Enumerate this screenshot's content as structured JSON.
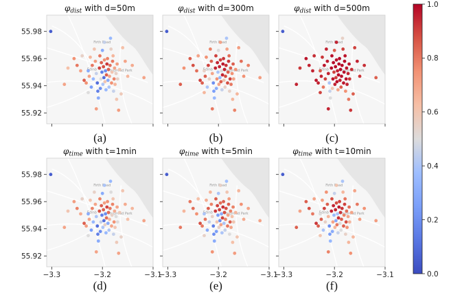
{
  "chart_data": {
    "type": "scatter",
    "layout": "2x3 grid of map scatter panels sharing a colorbar",
    "x_ticks": [
      "−3.3",
      "−3.2",
      "−3.1"
    ],
    "y_ticks": [
      "55.92",
      "55.94",
      "55.96",
      "55.98"
    ],
    "xlim": [
      -3.31,
      -3.1
    ],
    "ylim": [
      55.912,
      55.992
    ],
    "colorbar": {
      "colormap": "coolwarm",
      "range": [
        0.0,
        1.0
      ],
      "ticks": [
        "0.0",
        "0.2",
        "0.4",
        "0.6",
        "0.8",
        "1.0"
      ]
    },
    "map_labels": [
      "Edinb",
      "Firth Road",
      "Holyrood Park"
    ],
    "panels": [
      {
        "symbol": "φ",
        "subscript": "dist",
        "suffix": " with d=50m",
        "caption": "(a)"
      },
      {
        "symbol": "φ",
        "subscript": "dist",
        "suffix": " with d=300m",
        "caption": "(b)"
      },
      {
        "symbol": "φ",
        "subscript": "dist",
        "suffix": " with d=500m",
        "caption": "(c)"
      },
      {
        "symbol": "φ",
        "subscript": "time",
        "suffix": " with t=1min",
        "caption": "(d)"
      },
      {
        "symbol": "φ",
        "subscript": "time",
        "suffix": " with t=5min",
        "caption": "(e)"
      },
      {
        "symbol": "φ",
        "subscript": "time",
        "suffix": " with t=10min",
        "caption": "(f)"
      }
    ],
    "points": [
      [
        -3.302,
        55.98
      ],
      [
        -3.275,
        55.941
      ],
      [
        -3.268,
        55.953
      ],
      [
        -3.256,
        55.96
      ],
      [
        -3.25,
        55.955
      ],
      [
        -3.243,
        55.951
      ],
      [
        -3.24,
        55.962
      ],
      [
        -3.236,
        55.944
      ],
      [
        -3.232,
        55.942
      ],
      [
        -3.228,
        55.951
      ],
      [
        -3.226,
        55.947
      ],
      [
        -3.224,
        55.961
      ],
      [
        -3.222,
        55.939
      ],
      [
        -3.22,
        55.955
      ],
      [
        -3.218,
        55.945
      ],
      [
        -3.216,
        55.967
      ],
      [
        -3.214,
        55.958
      ],
      [
        -3.212,
        55.949
      ],
      [
        -3.21,
        55.942
      ],
      [
        -3.209,
        55.936
      ],
      [
        -3.208,
        55.931
      ],
      [
        -3.206,
        55.953
      ],
      [
        -3.205,
        55.962
      ],
      [
        -3.204,
        55.938
      ],
      [
        -3.203,
        55.945
      ],
      [
        -3.202,
        55.957
      ],
      [
        -3.201,
        55.95
      ],
      [
        -3.2,
        55.966
      ],
      [
        -3.199,
        55.941
      ],
      [
        -3.198,
        55.954
      ],
      [
        -3.197,
        55.946
      ],
      [
        -3.196,
        55.959
      ],
      [
        -3.195,
        55.943
      ],
      [
        -3.194,
        55.951
      ],
      [
        -3.193,
        55.937
      ],
      [
        -3.192,
        55.948
      ],
      [
        -3.191,
        55.956
      ],
      [
        -3.19,
        55.96
      ],
      [
        -3.189,
        55.944
      ],
      [
        -3.188,
        55.952
      ],
      [
        -3.187,
        55.939
      ],
      [
        -3.186,
        55.947
      ],
      [
        -3.185,
        55.955
      ],
      [
        -3.184,
        55.975
      ],
      [
        -3.183,
        55.967
      ],
      [
        -3.182,
        55.942
      ],
      [
        -3.181,
        55.95
      ],
      [
        -3.18,
        55.958
      ],
      [
        -3.179,
        55.962
      ],
      [
        -3.178,
        55.936
      ],
      [
        -3.177,
        55.945
      ],
      [
        -3.176,
        55.953
      ],
      [
        -3.175,
        55.941
      ],
      [
        -3.173,
        55.949
      ],
      [
        -3.172,
        55.93
      ],
      [
        -3.171,
        55.956
      ],
      [
        -3.17,
        55.945
      ],
      [
        -3.168,
        55.922
      ],
      [
        -3.166,
        55.952
      ],
      [
        -3.163,
        55.934
      ],
      [
        -3.16,
        55.968
      ],
      [
        -3.155,
        55.958
      ],
      [
        -3.15,
        55.947
      ],
      [
        -3.141,
        55.955
      ],
      [
        -3.118,
        55.946
      ],
      [
        -3.212,
        55.923
      ],
      [
        -3.228,
        55.935
      ],
      [
        -3.196,
        55.972
      ]
    ],
    "values": [
      [
        0.05,
        0.05,
        0.05,
        0.05,
        0.05,
        0.05
      ],
      [
        0.7,
        0.85,
        0.95,
        0.7,
        0.8,
        0.85
      ],
      [
        0.62,
        0.75,
        0.92,
        0.6,
        0.65,
        0.7
      ],
      [
        0.75,
        0.85,
        0.97,
        0.72,
        0.8,
        0.85
      ],
      [
        0.8,
        0.88,
        0.95,
        0.78,
        0.82,
        0.88
      ],
      [
        0.7,
        0.82,
        0.95,
        0.68,
        0.75,
        0.8
      ],
      [
        0.55,
        0.7,
        0.93,
        0.55,
        0.62,
        0.7
      ],
      [
        0.85,
        0.9,
        0.97,
        0.85,
        0.88,
        0.92
      ],
      [
        0.75,
        0.85,
        0.95,
        0.72,
        0.8,
        0.85
      ],
      [
        0.3,
        0.55,
        0.85,
        0.3,
        0.4,
        0.5
      ],
      [
        0.7,
        0.85,
        0.95,
        0.7,
        0.8,
        0.85
      ],
      [
        0.65,
        0.75,
        0.92,
        0.6,
        0.68,
        0.72
      ],
      [
        0.25,
        0.4,
        0.8,
        0.25,
        0.3,
        0.4
      ],
      [
        0.8,
        0.9,
        0.97,
        0.78,
        0.85,
        0.9
      ],
      [
        0.35,
        0.55,
        0.9,
        0.35,
        0.45,
        0.55
      ],
      [
        0.6,
        0.78,
        0.95,
        0.55,
        0.65,
        0.75
      ],
      [
        0.72,
        0.85,
        0.96,
        0.7,
        0.78,
        0.85
      ],
      [
        0.45,
        0.7,
        0.95,
        0.4,
        0.55,
        0.65
      ],
      [
        0.1,
        0.2,
        0.4,
        0.1,
        0.15,
        0.2
      ],
      [
        0.15,
        0.25,
        0.45,
        0.15,
        0.2,
        0.25
      ],
      [
        0.3,
        0.35,
        0.5,
        0.3,
        0.3,
        0.35
      ],
      [
        0.9,
        0.95,
        0.99,
        0.88,
        0.92,
        0.95
      ],
      [
        0.8,
        0.9,
        0.98,
        0.78,
        0.85,
        0.88
      ],
      [
        0.2,
        0.3,
        0.6,
        0.2,
        0.25,
        0.3
      ],
      [
        0.5,
        0.75,
        0.97,
        0.45,
        0.6,
        0.7
      ],
      [
        0.85,
        0.95,
        0.99,
        0.85,
        0.9,
        0.95
      ],
      [
        0.15,
        0.4,
        0.9,
        0.15,
        0.25,
        0.35
      ],
      [
        0.3,
        0.5,
        0.85,
        0.3,
        0.4,
        0.45
      ],
      [
        0.4,
        0.7,
        0.95,
        0.4,
        0.55,
        0.65
      ],
      [
        0.88,
        0.95,
        0.99,
        0.85,
        0.9,
        0.95
      ],
      [
        0.1,
        0.35,
        0.9,
        0.1,
        0.2,
        0.3
      ],
      [
        0.75,
        0.9,
        0.98,
        0.72,
        0.82,
        0.88
      ],
      [
        0.6,
        0.85,
        0.98,
        0.55,
        0.7,
        0.8
      ],
      [
        0.2,
        0.5,
        0.95,
        0.2,
        0.3,
        0.4
      ],
      [
        0.35,
        0.45,
        0.7,
        0.35,
        0.4,
        0.45
      ],
      [
        0.85,
        0.95,
        0.99,
        0.82,
        0.9,
        0.93
      ],
      [
        0.92,
        0.97,
        1.0,
        0.9,
        0.93,
        0.96
      ],
      [
        0.78,
        0.92,
        0.99,
        0.75,
        0.85,
        0.9
      ],
      [
        0.3,
        0.6,
        0.95,
        0.3,
        0.4,
        0.5
      ],
      [
        0.85,
        0.95,
        0.99,
        0.82,
        0.88,
        0.92
      ],
      [
        0.4,
        0.55,
        0.85,
        0.4,
        0.45,
        0.5
      ],
      [
        0.7,
        0.88,
        0.98,
        0.65,
        0.78,
        0.85
      ],
      [
        0.82,
        0.93,
        0.99,
        0.8,
        0.88,
        0.92
      ],
      [
        0.35,
        0.4,
        0.55,
        0.35,
        0.38,
        0.4
      ],
      [
        0.55,
        0.7,
        0.9,
        0.5,
        0.6,
        0.65
      ],
      [
        0.75,
        0.88,
        0.97,
        0.7,
        0.8,
        0.85
      ],
      [
        0.6,
        0.85,
        0.98,
        0.55,
        0.7,
        0.78
      ],
      [
        0.8,
        0.92,
        0.99,
        0.78,
        0.85,
        0.9
      ],
      [
        0.65,
        0.82,
        0.97,
        0.6,
        0.72,
        0.8
      ],
      [
        0.45,
        0.55,
        0.75,
        0.45,
        0.5,
        0.55
      ],
      [
        0.78,
        0.9,
        0.98,
        0.75,
        0.85,
        0.88
      ],
      [
        0.7,
        0.85,
        0.97,
        0.68,
        0.78,
        0.82
      ],
      [
        0.65,
        0.8,
        0.95,
        0.6,
        0.7,
        0.75
      ],
      [
        0.55,
        0.75,
        0.95,
        0.5,
        0.62,
        0.7
      ],
      [
        0.6,
        0.65,
        0.8,
        0.58,
        0.62,
        0.65
      ],
      [
        0.72,
        0.85,
        0.97,
        0.7,
        0.78,
        0.82
      ],
      [
        0.55,
        0.7,
        0.92,
        0.5,
        0.6,
        0.65
      ],
      [
        0.72,
        0.78,
        0.92,
        0.7,
        0.72,
        0.75
      ],
      [
        0.6,
        0.75,
        0.93,
        0.58,
        0.65,
        0.7
      ],
      [
        0.58,
        0.65,
        0.85,
        0.55,
        0.6,
        0.65
      ],
      [
        0.62,
        0.72,
        0.9,
        0.6,
        0.65,
        0.7
      ],
      [
        0.7,
        0.82,
        0.95,
        0.68,
        0.75,
        0.8
      ],
      [
        0.65,
        0.75,
        0.92,
        0.62,
        0.68,
        0.72
      ],
      [
        0.68,
        0.78,
        0.93,
        0.65,
        0.7,
        0.75
      ],
      [
        0.7,
        0.72,
        0.85,
        0.7,
        0.7,
        0.72
      ],
      [
        0.72,
        0.8,
        0.95,
        0.7,
        0.75,
        0.78
      ],
      [
        0.5,
        0.65,
        0.9,
        0.5,
        0.55,
        0.6
      ],
      [
        0.45,
        0.7,
        0.95,
        0.4,
        0.55,
        0.6
      ]
    ]
  }
}
